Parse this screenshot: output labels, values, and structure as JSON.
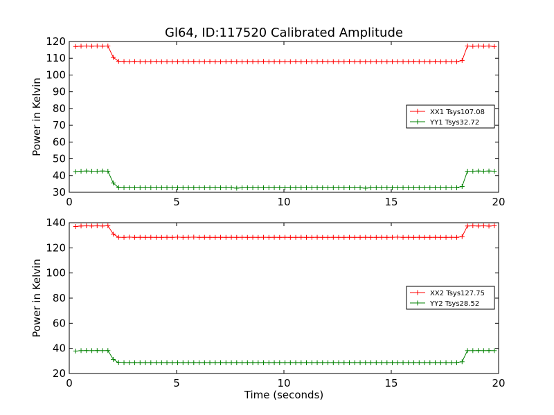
{
  "title": "Gl64, ID:117520 Calibrated Amplitude",
  "chart_data": [
    {
      "type": "line",
      "title": "Gl64, ID:117520 Calibrated Amplitude",
      "xlabel": "",
      "ylabel": "Power in Kelvin",
      "xlim": [
        0,
        20
      ],
      "ylim": [
        30,
        120
      ],
      "xticks": [
        0,
        5,
        10,
        15,
        20
      ],
      "yticks": [
        30,
        40,
        50,
        60,
        70,
        80,
        90,
        100,
        110,
        120
      ],
      "legend_position": "center-right",
      "grid": false,
      "series": [
        {
          "name": "XX1 Tsys107.08",
          "color": "#ff0000",
          "marker": "+",
          "x": [
            0.3,
            0.55,
            0.8,
            1.05,
            1.3,
            1.55,
            1.8,
            2.05,
            2.3,
            2.55,
            2.8,
            3.05,
            3.3,
            3.55,
            3.8,
            4.05,
            4.3,
            4.55,
            4.8,
            5.05,
            5.3,
            5.55,
            5.8,
            6.05,
            6.3,
            6.55,
            6.8,
            7.05,
            7.3,
            7.55,
            7.8,
            8.05,
            8.3,
            8.55,
            8.8,
            9.05,
            9.3,
            9.55,
            9.8,
            10.05,
            10.3,
            10.55,
            10.8,
            11.05,
            11.3,
            11.55,
            11.8,
            12.05,
            12.3,
            12.55,
            12.8,
            13.05,
            13.3,
            13.55,
            13.8,
            14.05,
            14.3,
            14.55,
            14.8,
            15.05,
            15.3,
            15.55,
            15.8,
            16.05,
            16.3,
            16.55,
            16.8,
            17.05,
            17.3,
            17.55,
            17.8,
            18.05,
            18.3,
            18.55,
            18.8,
            19.05,
            19.3,
            19.55,
            19.8
          ],
          "y": [
            117.0,
            117.2,
            117.3,
            117.2,
            117.3,
            117.2,
            117.3,
            110.5,
            108.2,
            108.1,
            108.0,
            108.1,
            108.0,
            107.9,
            108.0,
            108.1,
            107.9,
            108.0,
            108.0,
            107.9,
            108.1,
            108.0,
            108.1,
            108.0,
            108.0,
            108.1,
            107.9,
            107.9,
            108.0,
            108.1,
            108.0,
            107.9,
            107.9,
            108.0,
            107.9,
            108.1,
            107.9,
            108.0,
            107.9,
            108.0,
            108.0,
            108.1,
            107.9,
            108.0,
            108.0,
            107.9,
            108.1,
            107.9,
            108.0,
            107.9,
            108.0,
            108.1,
            107.9,
            108.0,
            107.9,
            108.0,
            108.0,
            108.0,
            107.9,
            108.0,
            108.0,
            108.0,
            107.9,
            108.1,
            108.0,
            108.0,
            107.9,
            108.1,
            107.9,
            108.0,
            108.0,
            107.9,
            108.7,
            117.3,
            117.1,
            117.3,
            117.2,
            117.3,
            117.0
          ]
        },
        {
          "name": "YY1 Tsys32.72",
          "color": "#008000",
          "marker": "+",
          "x": [
            0.3,
            0.55,
            0.8,
            1.05,
            1.3,
            1.55,
            1.8,
            2.05,
            2.3,
            2.55,
            2.8,
            3.05,
            3.3,
            3.55,
            3.8,
            4.05,
            4.3,
            4.55,
            4.8,
            5.05,
            5.3,
            5.55,
            5.8,
            6.05,
            6.3,
            6.55,
            6.8,
            7.05,
            7.3,
            7.55,
            7.8,
            8.05,
            8.3,
            8.55,
            8.8,
            9.05,
            9.3,
            9.55,
            9.8,
            10.05,
            10.3,
            10.55,
            10.8,
            11.05,
            11.3,
            11.55,
            11.8,
            12.05,
            12.3,
            12.55,
            12.8,
            13.05,
            13.3,
            13.55,
            13.8,
            14.05,
            14.3,
            14.55,
            14.8,
            15.05,
            15.3,
            15.55,
            15.8,
            16.05,
            16.3,
            16.55,
            16.8,
            17.05,
            17.3,
            17.55,
            17.8,
            18.05,
            18.3,
            18.55,
            18.8,
            19.05,
            19.3,
            19.55,
            19.8
          ],
          "y": [
            42.3,
            42.6,
            42.7,
            42.6,
            42.6,
            42.7,
            42.6,
            35.5,
            32.8,
            32.7,
            32.7,
            32.7,
            32.7,
            32.7,
            32.7,
            32.7,
            32.7,
            32.7,
            32.7,
            32.7,
            32.7,
            32.7,
            32.7,
            32.7,
            32.7,
            32.7,
            32.7,
            32.7,
            32.7,
            32.7,
            32.5,
            32.7,
            32.7,
            32.7,
            32.7,
            32.7,
            32.7,
            32.7,
            32.7,
            32.7,
            32.7,
            32.7,
            32.7,
            32.7,
            32.7,
            32.7,
            32.7,
            32.7,
            32.7,
            32.7,
            32.7,
            32.7,
            32.7,
            32.7,
            32.5,
            32.7,
            32.7,
            32.7,
            32.7,
            32.7,
            32.7,
            32.7,
            32.7,
            32.7,
            32.7,
            32.7,
            32.7,
            32.7,
            32.7,
            32.7,
            32.7,
            32.7,
            33.5,
            42.6,
            42.6,
            42.7,
            42.6,
            42.7,
            42.6
          ]
        }
      ]
    },
    {
      "type": "line",
      "title": "",
      "xlabel": "Time (seconds)",
      "ylabel": "Power in Kelvin",
      "xlim": [
        0,
        20
      ],
      "ylim": [
        20,
        140
      ],
      "xticks": [
        0,
        5,
        10,
        15,
        20
      ],
      "yticks": [
        20,
        40,
        60,
        80,
        100,
        120,
        140
      ],
      "legend_position": "center-right",
      "grid": false,
      "series": [
        {
          "name": "XX2 Tsys127.75",
          "color": "#ff0000",
          "marker": "+",
          "x": [
            0.3,
            0.55,
            0.8,
            1.05,
            1.3,
            1.55,
            1.8,
            2.05,
            2.3,
            2.55,
            2.8,
            3.05,
            3.3,
            3.55,
            3.8,
            4.05,
            4.3,
            4.55,
            4.8,
            5.05,
            5.3,
            5.55,
            5.8,
            6.05,
            6.3,
            6.55,
            6.8,
            7.05,
            7.3,
            7.55,
            7.8,
            8.05,
            8.3,
            8.55,
            8.8,
            9.05,
            9.3,
            9.55,
            9.8,
            10.05,
            10.3,
            10.55,
            10.8,
            11.05,
            11.3,
            11.55,
            11.8,
            12.05,
            12.3,
            12.55,
            12.8,
            13.05,
            13.3,
            13.55,
            13.8,
            14.05,
            14.3,
            14.55,
            14.8,
            15.05,
            15.3,
            15.55,
            15.8,
            16.05,
            16.3,
            16.55,
            16.8,
            17.05,
            17.3,
            17.55,
            17.8,
            18.05,
            18.3,
            18.55,
            18.8,
            19.05,
            19.3,
            19.55,
            19.8
          ],
          "y": [
            137.0,
            137.4,
            137.5,
            137.4,
            137.5,
            137.4,
            137.6,
            131.0,
            128.4,
            128.3,
            128.5,
            128.3,
            128.4,
            128.3,
            128.4,
            128.3,
            128.3,
            128.4,
            128.3,
            128.5,
            128.3,
            128.4,
            128.5,
            128.3,
            128.4,
            128.3,
            128.3,
            128.4,
            128.3,
            128.4,
            128.3,
            128.4,
            128.3,
            128.4,
            128.3,
            128.4,
            128.3,
            128.4,
            128.3,
            128.4,
            128.3,
            128.3,
            128.4,
            128.3,
            128.3,
            128.4,
            128.3,
            128.3,
            128.4,
            128.3,
            128.3,
            128.4,
            128.3,
            128.3,
            128.4,
            128.3,
            128.3,
            128.4,
            128.3,
            128.4,
            128.5,
            128.3,
            128.4,
            128.3,
            128.4,
            128.3,
            128.3,
            128.4,
            128.3,
            128.3,
            128.4,
            128.3,
            129.0,
            137.4,
            137.5,
            137.4,
            137.5,
            137.3,
            137.6
          ]
        },
        {
          "name": "YY2 Tsys28.52",
          "color": "#008000",
          "marker": "+",
          "x": [
            0.3,
            0.55,
            0.8,
            1.05,
            1.3,
            1.55,
            1.8,
            2.05,
            2.3,
            2.55,
            2.8,
            3.05,
            3.3,
            3.55,
            3.8,
            4.05,
            4.3,
            4.55,
            4.8,
            5.05,
            5.3,
            5.55,
            5.8,
            6.05,
            6.3,
            6.55,
            6.8,
            7.05,
            7.3,
            7.55,
            7.8,
            8.05,
            8.3,
            8.55,
            8.8,
            9.05,
            9.3,
            9.55,
            9.8,
            10.05,
            10.3,
            10.55,
            10.8,
            11.05,
            11.3,
            11.55,
            11.8,
            12.05,
            12.3,
            12.55,
            12.8,
            13.05,
            13.3,
            13.55,
            13.8,
            14.05,
            14.3,
            14.55,
            14.8,
            15.05,
            15.3,
            15.55,
            15.8,
            16.05,
            16.3,
            16.55,
            16.8,
            17.05,
            17.3,
            17.55,
            17.8,
            18.05,
            18.3,
            18.55,
            18.8,
            19.05,
            19.3,
            19.55,
            19.8
          ],
          "y": [
            37.8,
            38.2,
            38.3,
            38.2,
            38.3,
            38.2,
            38.3,
            31.3,
            28.6,
            28.5,
            28.5,
            28.5,
            28.5,
            28.5,
            28.5,
            28.5,
            28.5,
            28.5,
            28.5,
            28.5,
            28.5,
            28.5,
            28.5,
            28.5,
            28.5,
            28.5,
            28.5,
            28.5,
            28.5,
            28.5,
            28.5,
            28.5,
            28.5,
            28.5,
            28.5,
            28.5,
            28.5,
            28.5,
            28.5,
            28.5,
            28.5,
            28.5,
            28.5,
            28.5,
            28.5,
            28.5,
            28.5,
            28.5,
            28.5,
            28.5,
            28.5,
            28.5,
            28.5,
            28.5,
            28.5,
            28.5,
            28.5,
            28.5,
            28.5,
            28.5,
            28.5,
            28.5,
            28.5,
            28.5,
            28.5,
            28.5,
            28.5,
            28.5,
            28.5,
            28.5,
            28.5,
            28.5,
            29.4,
            38.2,
            38.2,
            38.3,
            38.2,
            38.3,
            38.2
          ]
        }
      ]
    }
  ]
}
